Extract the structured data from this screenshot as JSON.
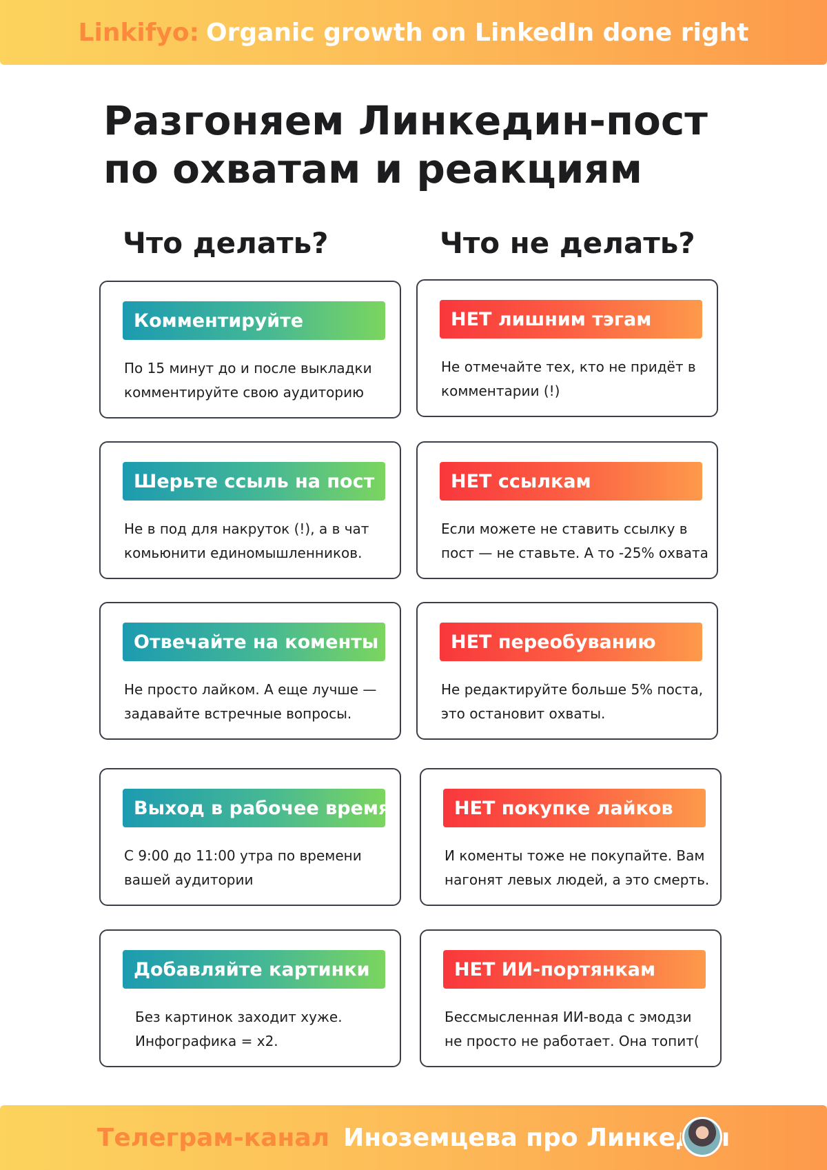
{
  "header": {
    "brand": "Linkifyo:",
    "tagline": "Organic growth on LinkedIn done right"
  },
  "title": {
    "line1": "Разгоняем Линкедин-пост",
    "line2": "по охватам и реакциям"
  },
  "columns": {
    "do": "Что делать?",
    "dont": "Что не делать?"
  },
  "do_cards": [
    {
      "title": "Комментируйте",
      "line1": "По 15 минут до и после выкладки",
      "line2": "комментируйте свою аудиторию"
    },
    {
      "title": "Шерьте ссыль на пост",
      "line1": "Не в под для накруток (!), а в чат",
      "line2": "комьюнити единомышленников."
    },
    {
      "title": "Отвечайте на коменты",
      "line1": "Не просто лайком. А еще лучше —",
      "line2": "задавайте встречные вопросы."
    },
    {
      "title": "Выход в рабочее время",
      "line1": "С 9:00 до 11:00 утра по времени",
      "line2": "вашей аудитории"
    },
    {
      "title": "Добавляйте картинки",
      "line1": "Без картинок заходит хуже.",
      "line2": "Инфографика = x2."
    }
  ],
  "dont_cards": [
    {
      "title": "НЕТ лишним тэгам",
      "line1": "Не отмечайте тех, кто не придёт в",
      "line2": "комментарии (!)"
    },
    {
      "title": "НЕТ ссылкам",
      "line1": "Если можете не ставить ссылку в",
      "line2": "пост — не ставьте. А то -25% охвата"
    },
    {
      "title": "НЕТ переобуванию",
      "line1": "Не редактируйте больше 5% поста,",
      "line2": "это остановит охваты."
    },
    {
      "title": "НЕТ покупке лайков",
      "line1": "И коменты тоже не покупайте. Вам",
      "line2": "нагонят левых людей, а это смерть."
    },
    {
      "title": "НЕТ ИИ-портянкам",
      "line1": "Бессмысленная ИИ-вода с эмодзи",
      "line2": "не просто не работает. Она топит("
    }
  ],
  "footer": {
    "label": "Телеграм-канал",
    "channel": "Иноземцева про Линкедин"
  },
  "colors": {
    "do_gradient": [
      "#1c9bb1",
      "#7cd55f"
    ],
    "dont_gradient": [
      "#f9373c",
      "#fd9a4b"
    ],
    "banner_gradient": [
      "#fcd35d",
      "#fd9a4b"
    ]
  }
}
